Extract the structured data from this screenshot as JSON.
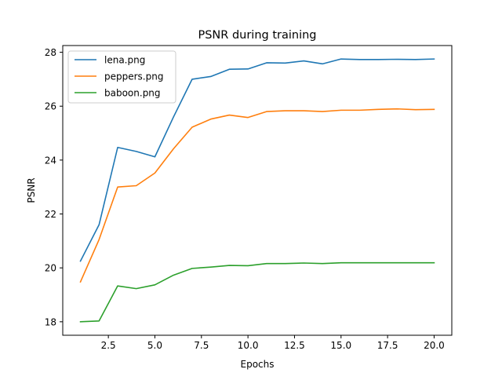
{
  "chart_data": {
    "type": "line",
    "title": "PSNR during training",
    "xlabel": "Epochs",
    "ylabel": "PSNR",
    "xlim": [
      0.05,
      20.95
    ],
    "ylim": [
      17.5,
      28.25
    ],
    "xticks": [
      2.5,
      5.0,
      7.5,
      10.0,
      12.5,
      15.0,
      17.5,
      20.0
    ],
    "xtick_labels": [
      "2.5",
      "5.0",
      "7.5",
      "10.0",
      "12.5",
      "15.0",
      "17.5",
      "20.0"
    ],
    "yticks": [
      18,
      20,
      22,
      24,
      26,
      28
    ],
    "ytick_labels": [
      "18",
      "20",
      "22",
      "24",
      "26",
      "28"
    ],
    "grid": false,
    "legend_position": "upper left",
    "x": [
      1,
      2,
      3,
      4,
      5,
      6,
      7,
      8,
      9,
      10,
      11,
      12,
      13,
      14,
      15,
      16,
      17,
      18,
      19,
      20
    ],
    "series": [
      {
        "name": "lena.png",
        "color": "#1f77b4",
        "values": [
          20.25,
          21.6,
          24.47,
          24.32,
          24.12,
          25.6,
          27.0,
          27.1,
          27.37,
          27.38,
          27.61,
          27.6,
          27.68,
          27.57,
          27.75,
          27.73,
          27.73,
          27.74,
          27.73,
          27.75
        ]
      },
      {
        "name": "peppers.png",
        "color": "#ff7f0e",
        "values": [
          19.48,
          21.05,
          23.0,
          23.05,
          23.52,
          24.42,
          25.22,
          25.52,
          25.67,
          25.58,
          25.8,
          25.83,
          25.83,
          25.8,
          25.85,
          25.85,
          25.88,
          25.9,
          25.87,
          25.88
        ]
      },
      {
        "name": "baboon.png",
        "color": "#2ca02c",
        "values": [
          18.0,
          18.03,
          19.33,
          19.23,
          19.37,
          19.73,
          19.98,
          20.03,
          20.09,
          20.08,
          20.16,
          20.16,
          20.18,
          20.16,
          20.19,
          20.19,
          20.19,
          20.19,
          20.19,
          20.19
        ]
      }
    ]
  }
}
